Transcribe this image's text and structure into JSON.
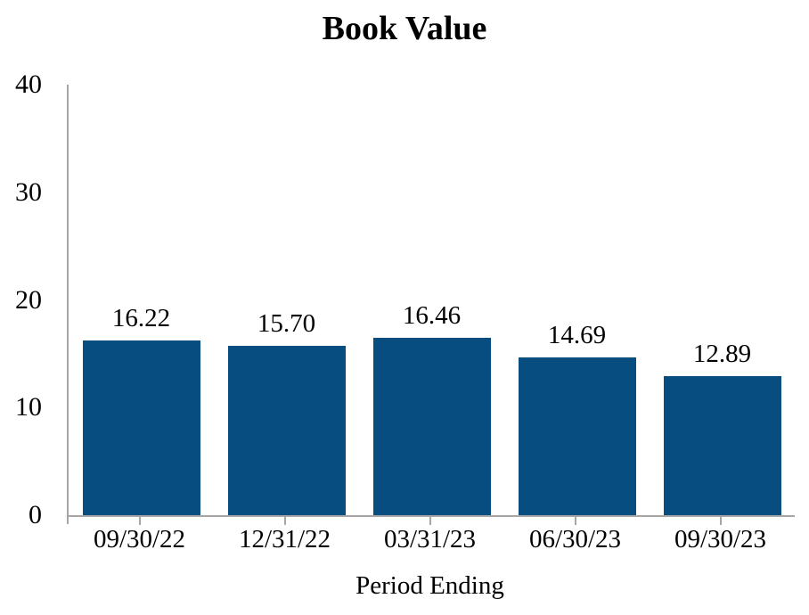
{
  "chart_data": {
    "type": "bar",
    "title": "Book Value",
    "xlabel": "Period Ending",
    "ylabel": "",
    "categories": [
      "09/30/22",
      "12/31/22",
      "03/31/23",
      "06/30/23",
      "09/30/23"
    ],
    "values": [
      16.22,
      15.7,
      16.46,
      14.69,
      12.89
    ],
    "value_labels": [
      "16.22",
      "15.70",
      "16.46",
      "14.69",
      "12.89"
    ],
    "ylim": [
      0,
      40
    ],
    "yticks": [
      0,
      10,
      20,
      30,
      40
    ],
    "grid": false,
    "legend": "none",
    "bar_color": "#084d80",
    "axis_color": "#a6a6a6",
    "text_color": "#000000",
    "background_color": "#ffffff"
  }
}
